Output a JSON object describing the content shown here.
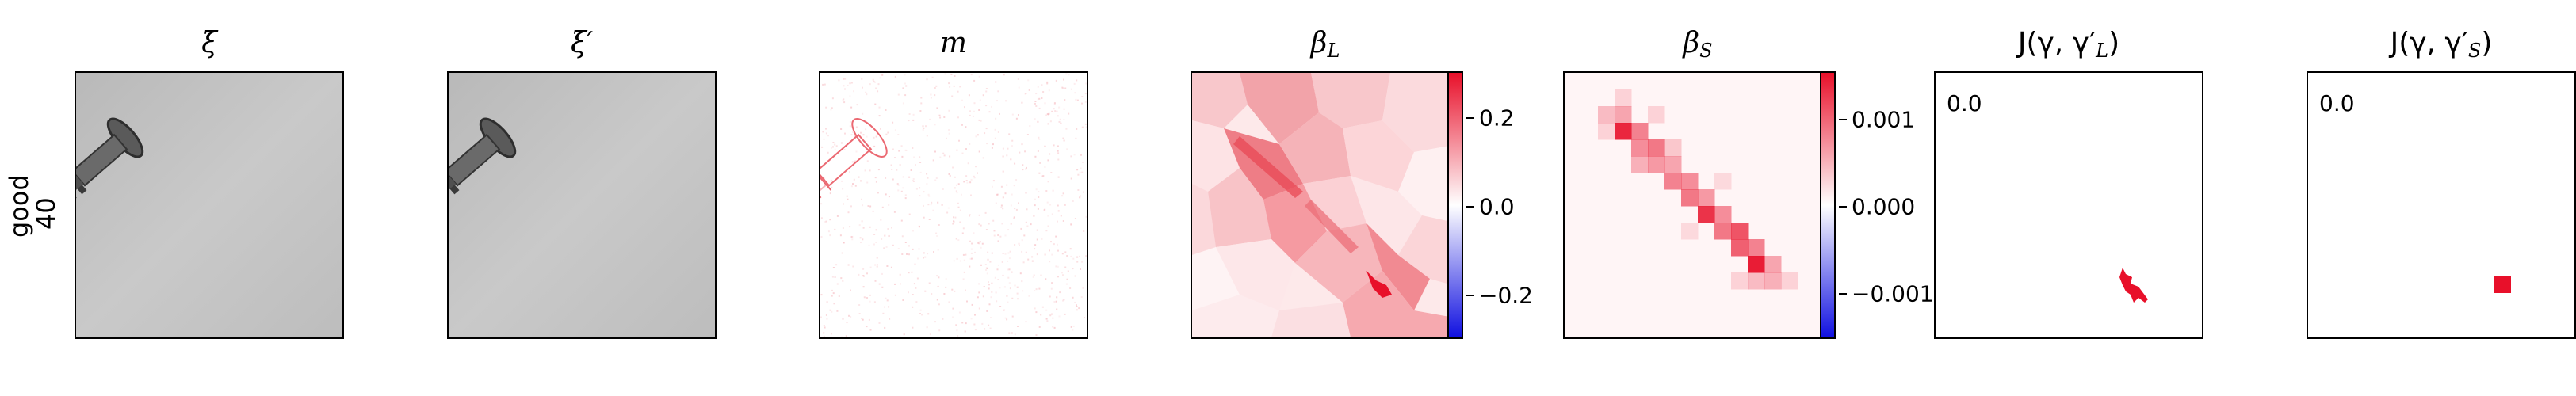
{
  "figure": {
    "row_label": {
      "category": "good",
      "index": "40"
    },
    "panels": [
      {
        "title": "ξ",
        "kind": "image"
      },
      {
        "title": "ξ′",
        "kind": "image"
      },
      {
        "title": "m",
        "kind": "mask"
      },
      {
        "title_main": "β",
        "title_sub": "L",
        "kind": "heat-large"
      },
      {
        "title_main": "β",
        "title_sub": "S",
        "kind": "heat-small"
      },
      {
        "title_prefix": "J(γ, γ′",
        "title_sub": "L",
        "title_suffix": ")",
        "kind": "jmap-large",
        "value_label": "0.0"
      },
      {
        "title_prefix": "J(γ, γ′",
        "title_sub": "S",
        "title_suffix": ")",
        "kind": "jmap-small",
        "value_label": "0.0"
      }
    ],
    "colorbar_L": {
      "ticks": [
        "0.2",
        "0.0",
        "−0.2"
      ],
      "range": [
        -0.3,
        0.3
      ]
    },
    "colorbar_S": {
      "ticks": [
        "0.001",
        "0.000",
        "−0.001"
      ],
      "range": [
        -0.0016,
        0.0016
      ]
    },
    "colors": {
      "positive": "#e8102a",
      "negative": "#1010e0",
      "neutral": "#ffffff",
      "photo_bg": "#c4c4c4"
    }
  }
}
